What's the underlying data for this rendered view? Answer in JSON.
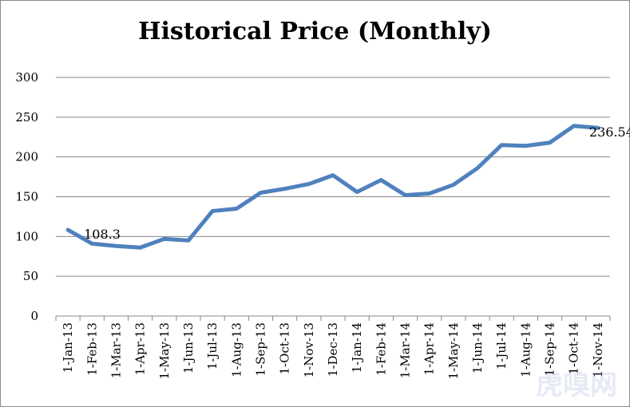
{
  "chart_data": {
    "type": "line",
    "title": "Historical Price (Monthly)",
    "xlabel": "",
    "ylabel": "",
    "ylim": [
      0,
      300
    ],
    "yticks": [
      0,
      50,
      100,
      150,
      200,
      250,
      300
    ],
    "grid": true,
    "categories": [
      "1-Jan-13",
      "1-Feb-13",
      "1-Mar-13",
      "1-Apr-13",
      "1-May-13",
      "1-Jun-13",
      "1-Jul-13",
      "1-Aug-13",
      "1-Sep-13",
      "1-Oct-13",
      "1-Nov-13",
      "1-Dec-13",
      "1-Jan-14",
      "1-Feb-14",
      "1-Mar-14",
      "1-Apr-14",
      "1-May-14",
      "1-Jun-14",
      "1-Jul-14",
      "1-Aug-14",
      "1-Sep-14",
      "1-Oct-14",
      "1-Nov-14"
    ],
    "series": [
      {
        "values": [
          108.3,
          91,
          88,
          86,
          97,
          95,
          132,
          135,
          155,
          160,
          166,
          177,
          156,
          171,
          152,
          154,
          165,
          186,
          215,
          214,
          218,
          239,
          236.54
        ],
        "color": "#4f81bd"
      }
    ],
    "data_labels": [
      {
        "index": 0,
        "text": "108.3"
      },
      {
        "index": 22,
        "text": "236.54"
      }
    ]
  },
  "watermark": "虎嗅网"
}
